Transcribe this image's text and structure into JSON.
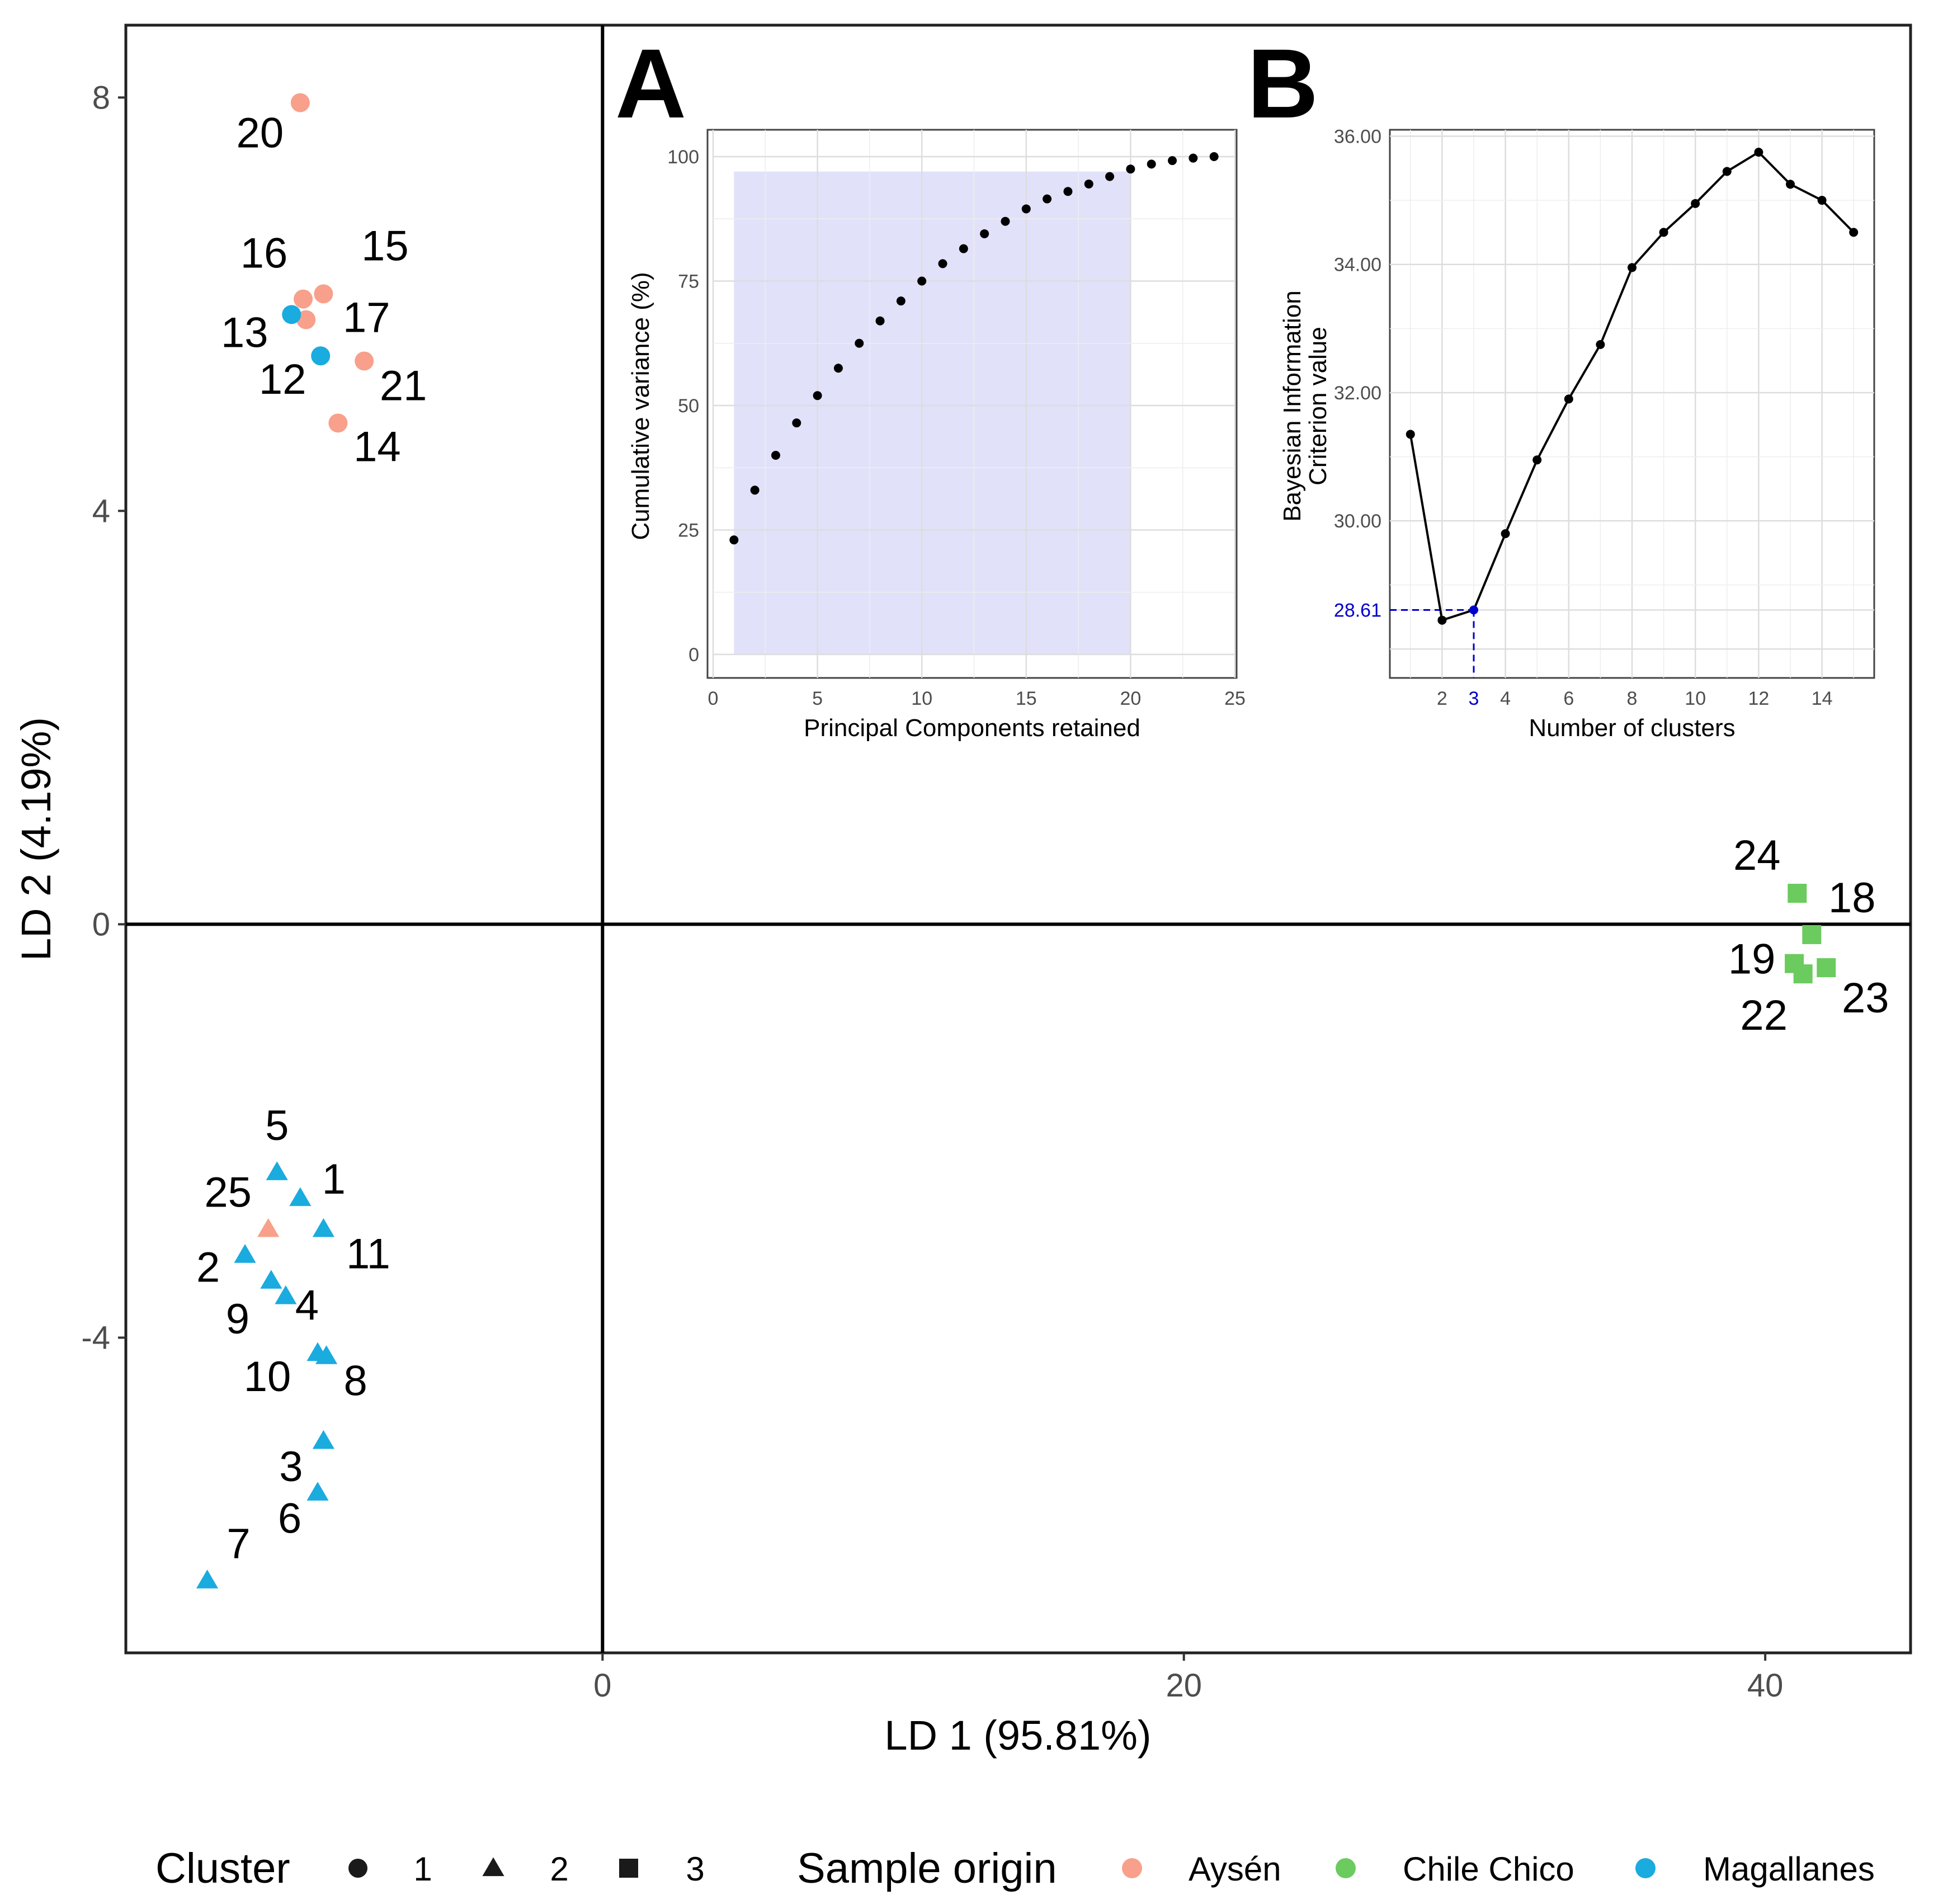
{
  "chart_data": [
    {
      "id": "main",
      "type": "scatter",
      "xlabel": "LD 1 (95.81%)",
      "ylabel": "LD 2 (4.19%)",
      "xlim": [
        -16.4,
        45.0
      ],
      "ylim": [
        -7.05,
        8.7
      ],
      "x_ticks": [
        0,
        20,
        40
      ],
      "y_ticks": [
        -4,
        0,
        4,
        8
      ],
      "reference_lines": {
        "x": 0,
        "y": 0
      },
      "grid": false,
      "points": [
        {
          "label": "20",
          "x": -10.4,
          "y": 7.95,
          "cluster": "1",
          "origin": "Aysén"
        },
        {
          "label": "15",
          "x": -9.6,
          "y": 6.1,
          "cluster": "1",
          "origin": "Aysén"
        },
        {
          "label": "16",
          "x": -10.3,
          "y": 6.05,
          "cluster": "1",
          "origin": "Aysén"
        },
        {
          "label": "17",
          "x": -10.2,
          "y": 5.85,
          "cluster": "1",
          "origin": "Aysén"
        },
        {
          "label": "13",
          "x": -10.7,
          "y": 5.9,
          "cluster": "1",
          "origin": "Magallanes"
        },
        {
          "label": "12",
          "x": -9.7,
          "y": 5.5,
          "cluster": "1",
          "origin": "Magallanes"
        },
        {
          "label": "21",
          "x": -8.2,
          "y": 5.45,
          "cluster": "1",
          "origin": "Aysén"
        },
        {
          "label": "14",
          "x": -9.1,
          "y": 4.85,
          "cluster": "1",
          "origin": "Aysén"
        },
        {
          "label": "5",
          "x": -11.2,
          "y": -2.4,
          "cluster": "2",
          "origin": "Magallanes"
        },
        {
          "label": "1",
          "x": -10.4,
          "y": -2.65,
          "cluster": "2",
          "origin": "Magallanes"
        },
        {
          "label": "25",
          "x": -11.5,
          "y": -2.95,
          "cluster": "2",
          "origin": "Aysén"
        },
        {
          "label": "11",
          "x": -9.6,
          "y": -2.95,
          "cluster": "2",
          "origin": "Magallanes"
        },
        {
          "label": "2",
          "x": -12.3,
          "y": -3.2,
          "cluster": "2",
          "origin": "Magallanes"
        },
        {
          "label": "9",
          "x": -11.4,
          "y": -3.45,
          "cluster": "2",
          "origin": "Magallanes"
        },
        {
          "label": "4",
          "x": -10.9,
          "y": -3.6,
          "cluster": "2",
          "origin": "Magallanes"
        },
        {
          "label": "10",
          "x": -9.8,
          "y": -4.15,
          "cluster": "2",
          "origin": "Magallanes"
        },
        {
          "label": "8",
          "x": -9.5,
          "y": -4.18,
          "cluster": "2",
          "origin": "Magallanes"
        },
        {
          "label": "3",
          "x": -9.6,
          "y": -5.0,
          "cluster": "2",
          "origin": "Magallanes"
        },
        {
          "label": "6",
          "x": -9.8,
          "y": -5.5,
          "cluster": "2",
          "origin": "Magallanes"
        },
        {
          "label": "7",
          "x": -13.6,
          "y": -6.35,
          "cluster": "2",
          "origin": "Magallanes"
        },
        {
          "label": "24",
          "x": 41.1,
          "y": 0.3,
          "cluster": "3",
          "origin": "Chile Chico"
        },
        {
          "label": "18",
          "x": 41.6,
          "y": -0.1,
          "cluster": "3",
          "origin": "Chile Chico"
        },
        {
          "label": "19",
          "x": 41.0,
          "y": -0.38,
          "cluster": "3",
          "origin": "Chile Chico"
        },
        {
          "label": "22",
          "x": 41.3,
          "y": -0.48,
          "cluster": "3",
          "origin": "Chile Chico"
        },
        {
          "label": "23",
          "x": 42.1,
          "y": -0.42,
          "cluster": "3",
          "origin": "Chile Chico"
        }
      ],
      "legend": {
        "position": "bottom",
        "cluster_title": "Cluster",
        "cluster_items": [
          {
            "label": "1",
            "shape": "circle"
          },
          {
            "label": "2",
            "shape": "triangle"
          },
          {
            "label": "3",
            "shape": "square"
          }
        ],
        "origin_title": "Sample origin",
        "origin_items": [
          {
            "label": "Aysén",
            "color": "#F8A08B"
          },
          {
            "label": "Chile Chico",
            "color": "#6BCB5E"
          },
          {
            "label": "Magallanes",
            "color": "#1AABDF"
          }
        ]
      }
    },
    {
      "id": "A",
      "panel_label": "A",
      "type": "scatter",
      "xlabel": "Principal Components retained",
      "ylabel": "Cumulative variance (%)",
      "xlim": [
        0,
        25
      ],
      "ylim": [
        0,
        100
      ],
      "x_ticks": [
        0,
        5,
        10,
        15,
        20,
        25
      ],
      "y_ticks": [
        0,
        25,
        50,
        75,
        100
      ],
      "grid": true,
      "shaded_region": {
        "x": [
          1,
          20
        ],
        "y": [
          0,
          97
        ]
      },
      "x": [
        1,
        2,
        3,
        4,
        5,
        6,
        7,
        8,
        9,
        10,
        11,
        12,
        13,
        14,
        15,
        16,
        17,
        18,
        19,
        20,
        21,
        22,
        23,
        24
      ],
      "y": [
        23,
        33,
        40,
        46.5,
        52,
        57.5,
        62.5,
        67,
        71,
        75,
        78.5,
        81.5,
        84.5,
        87,
        89.5,
        91.5,
        93,
        94.5,
        96,
        97.5,
        98.5,
        99.2,
        99.7,
        100
      ]
    },
    {
      "id": "B",
      "panel_label": "B",
      "type": "line",
      "xlabel": "Number of clusters",
      "ylabel": "Bayesian Information\nCriterion value",
      "xlim": [
        0.35,
        15.65
      ],
      "ylim": [
        27.55,
        36.1
      ],
      "x_ticks": [
        2,
        3,
        4,
        6,
        8,
        10,
        12,
        14
      ],
      "y_ticks": [
        30.0,
        32.0,
        34.0,
        36.0
      ],
      "y_tick_labels": [
        "30.00",
        "32.00",
        "34.00",
        "36.00"
      ],
      "grid": true,
      "x": [
        1,
        2,
        3,
        4,
        5,
        6,
        7,
        8,
        9,
        10,
        11,
        12,
        13,
        14,
        15
      ],
      "y": [
        31.35,
        28.45,
        28.61,
        29.8,
        30.95,
        31.9,
        32.75,
        33.95,
        34.5,
        34.95,
        35.45,
        35.75,
        35.25,
        35.0,
        34.5
      ],
      "highlight": {
        "x": 3,
        "y": 28.61,
        "x_label": "3",
        "y_label": "28.61",
        "color": "#0000CC"
      }
    }
  ]
}
